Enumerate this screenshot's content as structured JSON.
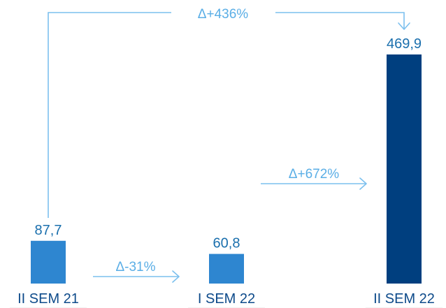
{
  "chart_data": {
    "type": "bar",
    "categories": [
      "II SEM 21",
      "I SEM 22",
      "II SEM 22"
    ],
    "values": [
      87.7,
      60.8,
      469.9
    ],
    "value_labels": [
      "87,7",
      "60,8",
      "469,9"
    ],
    "ylim": [
      0,
      500
    ],
    "grid": false,
    "colors": [
      "#2e86d0",
      "#2e86d0",
      "#003f7f"
    ],
    "annotations": [
      {
        "text": "Δ-31%",
        "from": "II SEM 21",
        "to": "I SEM 22"
      },
      {
        "text": "Δ+672%",
        "from": "I SEM 22",
        "to": "II SEM 22"
      },
      {
        "text": "Δ+436%",
        "from": "II SEM 21",
        "to": "II SEM 22"
      }
    ]
  },
  "colors": {
    "connector": "#7cc0ee",
    "delta_text": "#5aaee6",
    "value_text": "#1a6fad",
    "category_text": "#0d4a8a"
  }
}
